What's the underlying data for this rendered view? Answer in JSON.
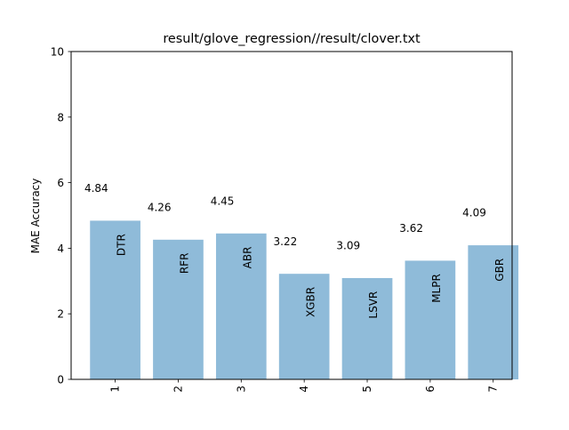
{
  "chart_data": {
    "type": "bar",
    "title": "result/glove_regression//result/clover.txt",
    "xlabel": "",
    "ylabel": "MAE Accuracy",
    "ylim": [
      0,
      10
    ],
    "yticks": [
      "0",
      "2",
      "4",
      "6",
      "8",
      "10"
    ],
    "categories": [
      "1",
      "2",
      "3",
      "4",
      "5",
      "6",
      "7"
    ],
    "values": [
      4.84,
      4.26,
      4.45,
      3.22,
      3.09,
      3.62,
      4.09
    ],
    "value_labels": [
      "4.84",
      "4.26",
      "4.45",
      "3.22",
      "3.09",
      "3.62",
      "4.09"
    ],
    "bar_labels": [
      "DTR",
      "RFR",
      "ABR",
      "XGBR",
      "LSVR",
      "MLPR",
      "GBR"
    ],
    "grid": false,
    "bar_color": "#8fbbd9"
  }
}
